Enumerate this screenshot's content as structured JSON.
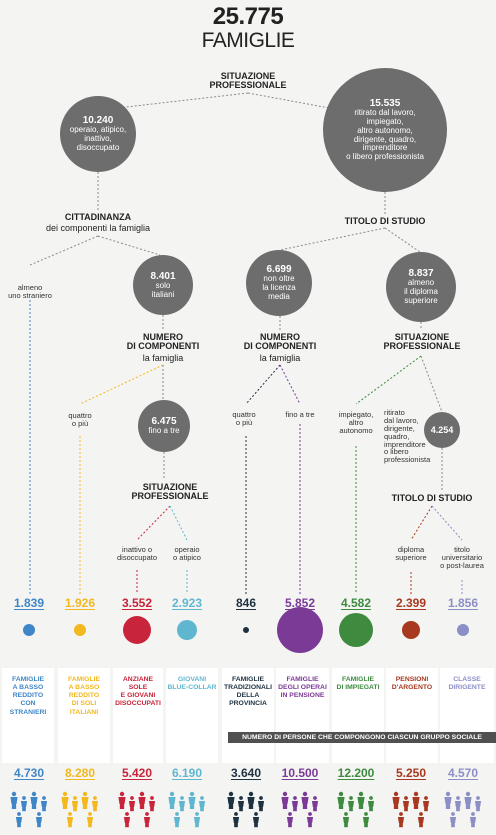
{
  "header": {
    "total": "25.775",
    "label": "FAMIGLIE"
  },
  "nodes": {
    "situazione1": "SITUAZIONE\nPROFESSIONALE",
    "left": {
      "value": "10.240",
      "desc": "operaio, atipico,\ninattivo,\ndisoccupato"
    },
    "right": {
      "value": "15.535",
      "desc": "ritirato dal lavoro,\nimpiegato,\naltro autonomo,\ndirigente, quadro,\nimprenditore\no libero professionista"
    },
    "cittadinanza": {
      "title": "CITTADINANZA",
      "sub": "dei componenti la famiglia"
    },
    "titolo1": "TITOLO DI STUDIO",
    "almeno_straniero": "almeno\nuno straniero",
    "italiani": {
      "value": "8.401",
      "desc": "solo\nitaliani"
    },
    "licenza": {
      "value": "6.699",
      "desc": "non oltre\nla licenza\nmedia"
    },
    "diploma": {
      "value": "8.837",
      "desc": "almeno\nil diploma\nsuperiore"
    },
    "numcomp1": {
      "title": "NUMERO\nDI COMPONENTI",
      "sub": "la famiglia"
    },
    "numcomp2": {
      "title": "NUMERO\nDI COMPONENTI",
      "sub": "la famiglia"
    },
    "situazione2": "SITUAZIONE\nPROFESSIONALE",
    "quattro1": "quattro\no più",
    "fino_tre": {
      "value": "6.475",
      "desc": "fino a tre"
    },
    "quattro2": "quattro\no più",
    "fino_tre2": "fino a tre",
    "impiegato": "impiegato,\naltro\nautonomo",
    "ritirato": "ritirato\ndal lavoro,\ndirigente,\nquadro,\nimprenditore\no libero\nprofessionista",
    "n4254": {
      "value": "4.254"
    },
    "situazione3": "SITUAZIONE\nPROFESSIONALE",
    "inattivo": "inattivo o\ndisoccupato",
    "operaio": "operaio\no atipico",
    "titolo2": "TITOLO DI STUDIO",
    "diploma_sup": "diploma\nsuperiore",
    "universitario": "titolo\nuniversitario\no post-laurea"
  },
  "groups": [
    {
      "count": "1.839",
      "color": "#3f86c8",
      "name": "FAMIGLIE\nA BASSO\nREDDITO\nCON\nSTRANIERI",
      "people": "4.730"
    },
    {
      "count": "1.926",
      "color": "#f2b81e",
      "name": "FAMIGLIE\nA BASSO\nREDDITO\nDI SOLI\nITALIANI",
      "people": "8.280"
    },
    {
      "count": "3.552",
      "color": "#c8243b",
      "name": "ANZIANE\nSOLE\nE GIOVANI\nDISOCCUPATI",
      "people": "5.420"
    },
    {
      "count": "2.923",
      "color": "#5fb6cf",
      "name": "GIOVANI\nBLUE-COLLAR",
      "people": "6.190"
    },
    {
      "count": "846",
      "color": "#1d3140",
      "name": "FAMIGLIE\nTRADIZIONALI\nDELLA\nPROVINCIA",
      "people": "3.640"
    },
    {
      "count": "5.852",
      "color": "#7b3a96",
      "name": "FAMIGLIE\nDEGLI OPERAI\nIN PENSIONE",
      "people": "10.500"
    },
    {
      "count": "4.582",
      "color": "#3e8a3f",
      "name": "FAMIGLIE\nDI IMPIEGATI",
      "people": "12.200"
    },
    {
      "count": "2.399",
      "color": "#a8381f",
      "name": "PENSIONI\nD'ARGENTO",
      "people": "5.250"
    },
    {
      "count": "1.856",
      "color": "#8c8fc6",
      "name": "CLASSE\nDIRIGENTE",
      "people": "4.570"
    }
  ],
  "band": "NUMERO DI PERSONE CHE COMPONGONO CIASCUN GRUPPO SOCIALE",
  "colors": {
    "node": "#6d6d6d",
    "line": "#8a8a8a"
  }
}
